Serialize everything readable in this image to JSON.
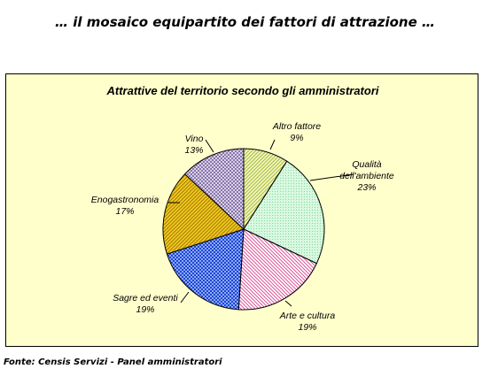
{
  "heading": "… il mosaico equipartito dei fattori di attrazione …",
  "source": "Fonte: Censis Servizi - Panel amministratori",
  "chart_data": {
    "type": "pie",
    "title": "Attrattive del territorio secondo gli amministratori",
    "labels_shown": "outside with leader lines",
    "legend": "none",
    "slices": [
      {
        "label": "Altro fattore",
        "value": 9,
        "value_label": "9%",
        "color": "#ccdd66",
        "pattern": "diagonal-lines"
      },
      {
        "label": "Qualità dell'ambiente",
        "value": 23,
        "value_label": "23%",
        "color": "#b8f0c8",
        "pattern": "dots"
      },
      {
        "label": "Arte e cultura",
        "value": 19,
        "value_label": "19%",
        "color": "#ee88bb",
        "pattern": "diagonal-lines"
      },
      {
        "label": "Sagre ed eventi",
        "value": 19,
        "value_label": "19%",
        "color": "#3355dd",
        "pattern": "checker"
      },
      {
        "label": "Enogastronomia",
        "value": 17,
        "value_label": "17%",
        "color": "#ddaa00",
        "pattern": "diagonal-lines"
      },
      {
        "label": "Vino",
        "value": 13,
        "value_label": "13%",
        "color": "#9988bb",
        "pattern": "checker"
      }
    ]
  }
}
